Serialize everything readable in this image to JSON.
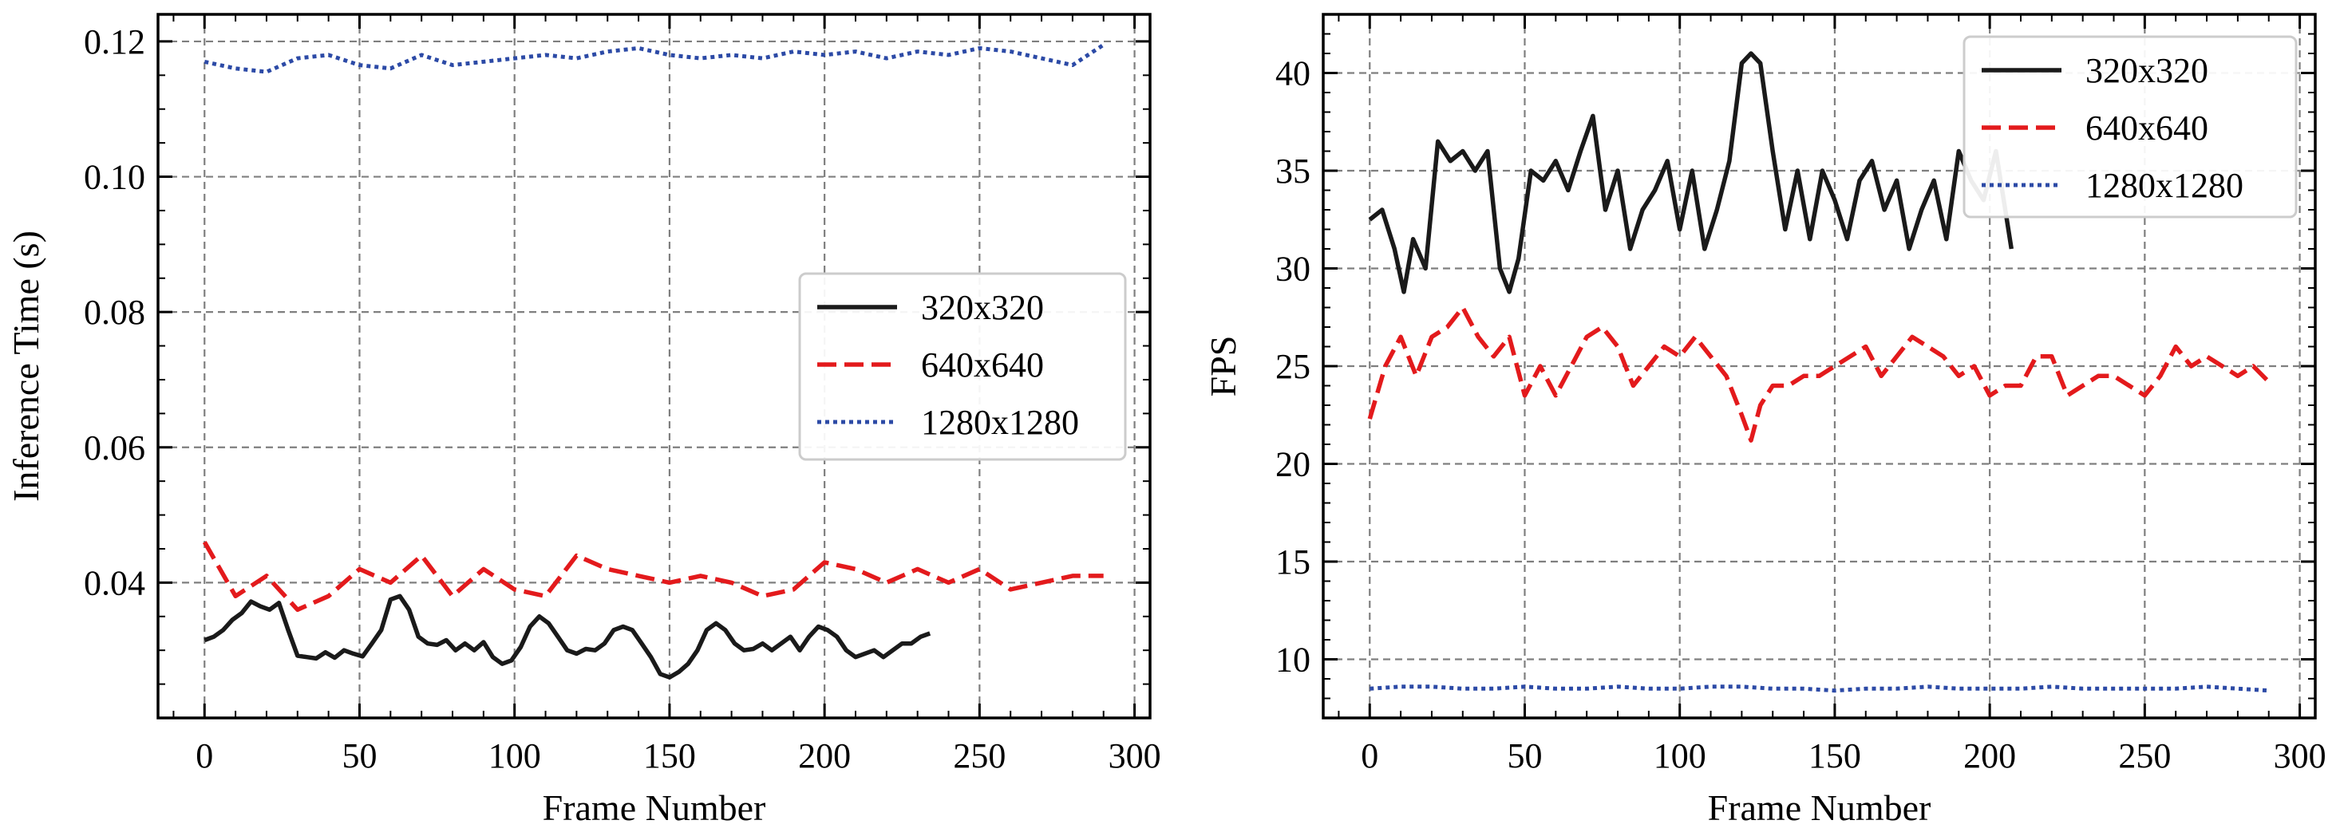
{
  "colors": {
    "320x320": "#1a1a1a",
    "640x640": "#e31a1c",
    "1280x1280": "#2c4aa6",
    "grid": "#7f7f7f",
    "legend_border": "#cccccc"
  },
  "chart_data": [
    {
      "type": "line",
      "xlabel": "Frame Number",
      "ylabel": "Inference Time (s)",
      "xlim": [
        -15,
        305
      ],
      "ylim": [
        0.02,
        0.124
      ],
      "xticks": [
        0,
        50,
        100,
        150,
        200,
        250,
        300
      ],
      "yticks": [
        0.04,
        0.06,
        0.08,
        0.1,
        0.12
      ],
      "ytick_labels": [
        "0.04",
        "0.06",
        "0.08",
        "0.10",
        "0.12"
      ],
      "grid": true,
      "legend": {
        "placement": "center-right",
        "entries": [
          "320x320",
          "640x640",
          "1280x1280"
        ]
      },
      "series": [
        {
          "name": "320x320",
          "style": "solid",
          "x": [
            0,
            3,
            6,
            9,
            12,
            15,
            18,
            21,
            24,
            27,
            30,
            33,
            36,
            39,
            42,
            45,
            48,
            51,
            54,
            57,
            60,
            63,
            66,
            69,
            72,
            75,
            78,
            81,
            84,
            87,
            90,
            93,
            96,
            99,
            102,
            105,
            108,
            111,
            114,
            117,
            120,
            123,
            126,
            129,
            132,
            135,
            138,
            141,
            144,
            147,
            150,
            153,
            156,
            159,
            162,
            165,
            168,
            171,
            174,
            177,
            180,
            183,
            186,
            189,
            192,
            195,
            198,
            201,
            204,
            207,
            210,
            213,
            216,
            219,
            222,
            225,
            228,
            231,
            234
          ],
          "y": [
            0.0315,
            0.032,
            0.033,
            0.0345,
            0.0355,
            0.0372,
            0.0365,
            0.036,
            0.037,
            0.033,
            0.0292,
            0.029,
            0.0288,
            0.0297,
            0.0289,
            0.03,
            0.0295,
            0.0291,
            0.031,
            0.033,
            0.0375,
            0.038,
            0.036,
            0.032,
            0.031,
            0.0308,
            0.0315,
            0.03,
            0.031,
            0.03,
            0.0312,
            0.029,
            0.028,
            0.0285,
            0.0305,
            0.0335,
            0.035,
            0.034,
            0.032,
            0.03,
            0.0295,
            0.0302,
            0.03,
            0.031,
            0.033,
            0.0335,
            0.033,
            0.031,
            0.029,
            0.0265,
            0.026,
            0.0268,
            0.028,
            0.03,
            0.033,
            0.034,
            0.033,
            0.031,
            0.03,
            0.0302,
            0.031,
            0.03,
            0.031,
            0.032,
            0.03,
            0.032,
            0.0335,
            0.033,
            0.032,
            0.03,
            0.029,
            0.0295,
            0.03,
            0.029,
            0.03,
            0.031,
            0.031,
            0.032,
            0.0325
          ]
        },
        {
          "name": "640x640",
          "style": "dashed",
          "x": [
            0,
            10,
            20,
            30,
            40,
            50,
            60,
            70,
            80,
            90,
            100,
            110,
            120,
            130,
            140,
            150,
            160,
            170,
            180,
            190,
            200,
            210,
            220,
            230,
            240,
            250,
            260,
            270,
            280,
            290
          ],
          "y": [
            0.046,
            0.038,
            0.041,
            0.036,
            0.038,
            0.042,
            0.04,
            0.044,
            0.038,
            0.042,
            0.039,
            0.038,
            0.044,
            0.042,
            0.041,
            0.04,
            0.041,
            0.04,
            0.038,
            0.039,
            0.043,
            0.042,
            0.04,
            0.042,
            0.04,
            0.042,
            0.039,
            0.04,
            0.041,
            0.041
          ]
        },
        {
          "name": "1280x1280",
          "style": "dotted",
          "x": [
            0,
            10,
            20,
            30,
            40,
            50,
            60,
            70,
            80,
            90,
            100,
            110,
            120,
            130,
            140,
            150,
            160,
            170,
            180,
            190,
            200,
            210,
            220,
            230,
            240,
            250,
            260,
            270,
            280,
            290
          ],
          "y": [
            0.117,
            0.116,
            0.1155,
            0.1175,
            0.118,
            0.1165,
            0.116,
            0.118,
            0.1165,
            0.117,
            0.1175,
            0.118,
            0.1175,
            0.1185,
            0.119,
            0.118,
            0.1175,
            0.118,
            0.1175,
            0.1185,
            0.118,
            0.1185,
            0.1175,
            0.1185,
            0.118,
            0.119,
            0.1185,
            0.1175,
            0.1165,
            0.1195
          ]
        }
      ]
    },
    {
      "type": "line",
      "xlabel": "Frame Number",
      "ylabel": "FPS",
      "xlim": [
        -15,
        305
      ],
      "ylim": [
        7,
        43
      ],
      "xticks": [
        0,
        50,
        100,
        150,
        200,
        250,
        300
      ],
      "yticks": [
        10,
        15,
        20,
        25,
        30,
        35,
        40
      ],
      "ytick_labels": [
        "10",
        "15",
        "20",
        "25",
        "30",
        "35",
        "40"
      ],
      "grid": true,
      "legend": {
        "placement": "top-right",
        "entries": [
          "320x320",
          "640x640",
          "1280x1280"
        ]
      },
      "series": [
        {
          "name": "320x320",
          "style": "solid",
          "x": [
            0,
            4,
            8,
            11,
            14,
            18,
            22,
            26,
            30,
            34,
            38,
            42,
            45,
            48,
            52,
            56,
            60,
            64,
            68,
            72,
            76,
            80,
            84,
            88,
            92,
            96,
            100,
            104,
            108,
            112,
            116,
            120,
            123,
            126,
            130,
            134,
            138,
            142,
            146,
            150,
            154,
            158,
            162,
            166,
            170,
            174,
            178,
            182,
            186,
            190,
            194,
            198,
            202,
            205,
            207
          ],
          "y": [
            32.5,
            33.0,
            31.0,
            28.8,
            31.5,
            30.0,
            36.5,
            35.5,
            36.0,
            35.0,
            36.0,
            30.0,
            28.8,
            30.5,
            35.0,
            34.5,
            35.5,
            34.0,
            36.0,
            37.8,
            33.0,
            35.0,
            31.0,
            33.0,
            34.0,
            35.5,
            32.0,
            35.0,
            31.0,
            33.0,
            35.5,
            40.5,
            41.0,
            40.5,
            36.0,
            32.0,
            35.0,
            31.5,
            35.0,
            33.5,
            31.5,
            34.5,
            35.5,
            33.0,
            34.5,
            31.0,
            33.0,
            34.5,
            31.5,
            36.0,
            34.5,
            33.5,
            36.0,
            33.0,
            31.0
          ]
        },
        {
          "name": "640x640",
          "style": "dashed",
          "x": [
            0,
            5,
            10,
            15,
            20,
            25,
            30,
            35,
            40,
            45,
            50,
            55,
            60,
            65,
            70,
            75,
            80,
            85,
            90,
            95,
            100,
            105,
            110,
            115,
            120,
            123,
            126,
            130,
            135,
            140,
            145,
            150,
            155,
            160,
            165,
            170,
            175,
            180,
            185,
            190,
            195,
            200,
            205,
            210,
            215,
            220,
            225,
            230,
            235,
            240,
            245,
            250,
            255,
            260,
            265,
            270,
            275,
            280,
            285,
            290
          ],
          "y": [
            22.3,
            25.0,
            26.5,
            24.5,
            26.5,
            27.0,
            28.0,
            26.5,
            25.5,
            26.5,
            23.5,
            25.0,
            23.5,
            25.0,
            26.5,
            27.0,
            26.0,
            24.0,
            25.0,
            26.0,
            25.5,
            26.5,
            25.5,
            24.5,
            22.5,
            21.2,
            23.0,
            24.0,
            24.0,
            24.5,
            24.5,
            25.0,
            25.5,
            26.0,
            24.5,
            25.5,
            26.5,
            26.0,
            25.5,
            24.5,
            25.0,
            23.5,
            24.0,
            24.0,
            25.5,
            25.5,
            23.5,
            24.0,
            24.5,
            24.5,
            24.0,
            23.5,
            24.5,
            26.0,
            25.0,
            25.5,
            25.0,
            24.5,
            25.0,
            24.2
          ]
        },
        {
          "name": "1280x1280",
          "style": "dotted",
          "x": [
            0,
            10,
            20,
            30,
            40,
            50,
            60,
            70,
            80,
            90,
            100,
            110,
            120,
            130,
            140,
            150,
            160,
            170,
            180,
            190,
            200,
            210,
            220,
            230,
            240,
            250,
            260,
            270,
            280,
            290
          ],
          "y": [
            8.5,
            8.6,
            8.6,
            8.5,
            8.5,
            8.6,
            8.5,
            8.5,
            8.6,
            8.5,
            8.5,
            8.6,
            8.6,
            8.5,
            8.5,
            8.4,
            8.5,
            8.5,
            8.6,
            8.5,
            8.5,
            8.5,
            8.6,
            8.5,
            8.5,
            8.5,
            8.5,
            8.6,
            8.5,
            8.4
          ]
        }
      ]
    }
  ]
}
